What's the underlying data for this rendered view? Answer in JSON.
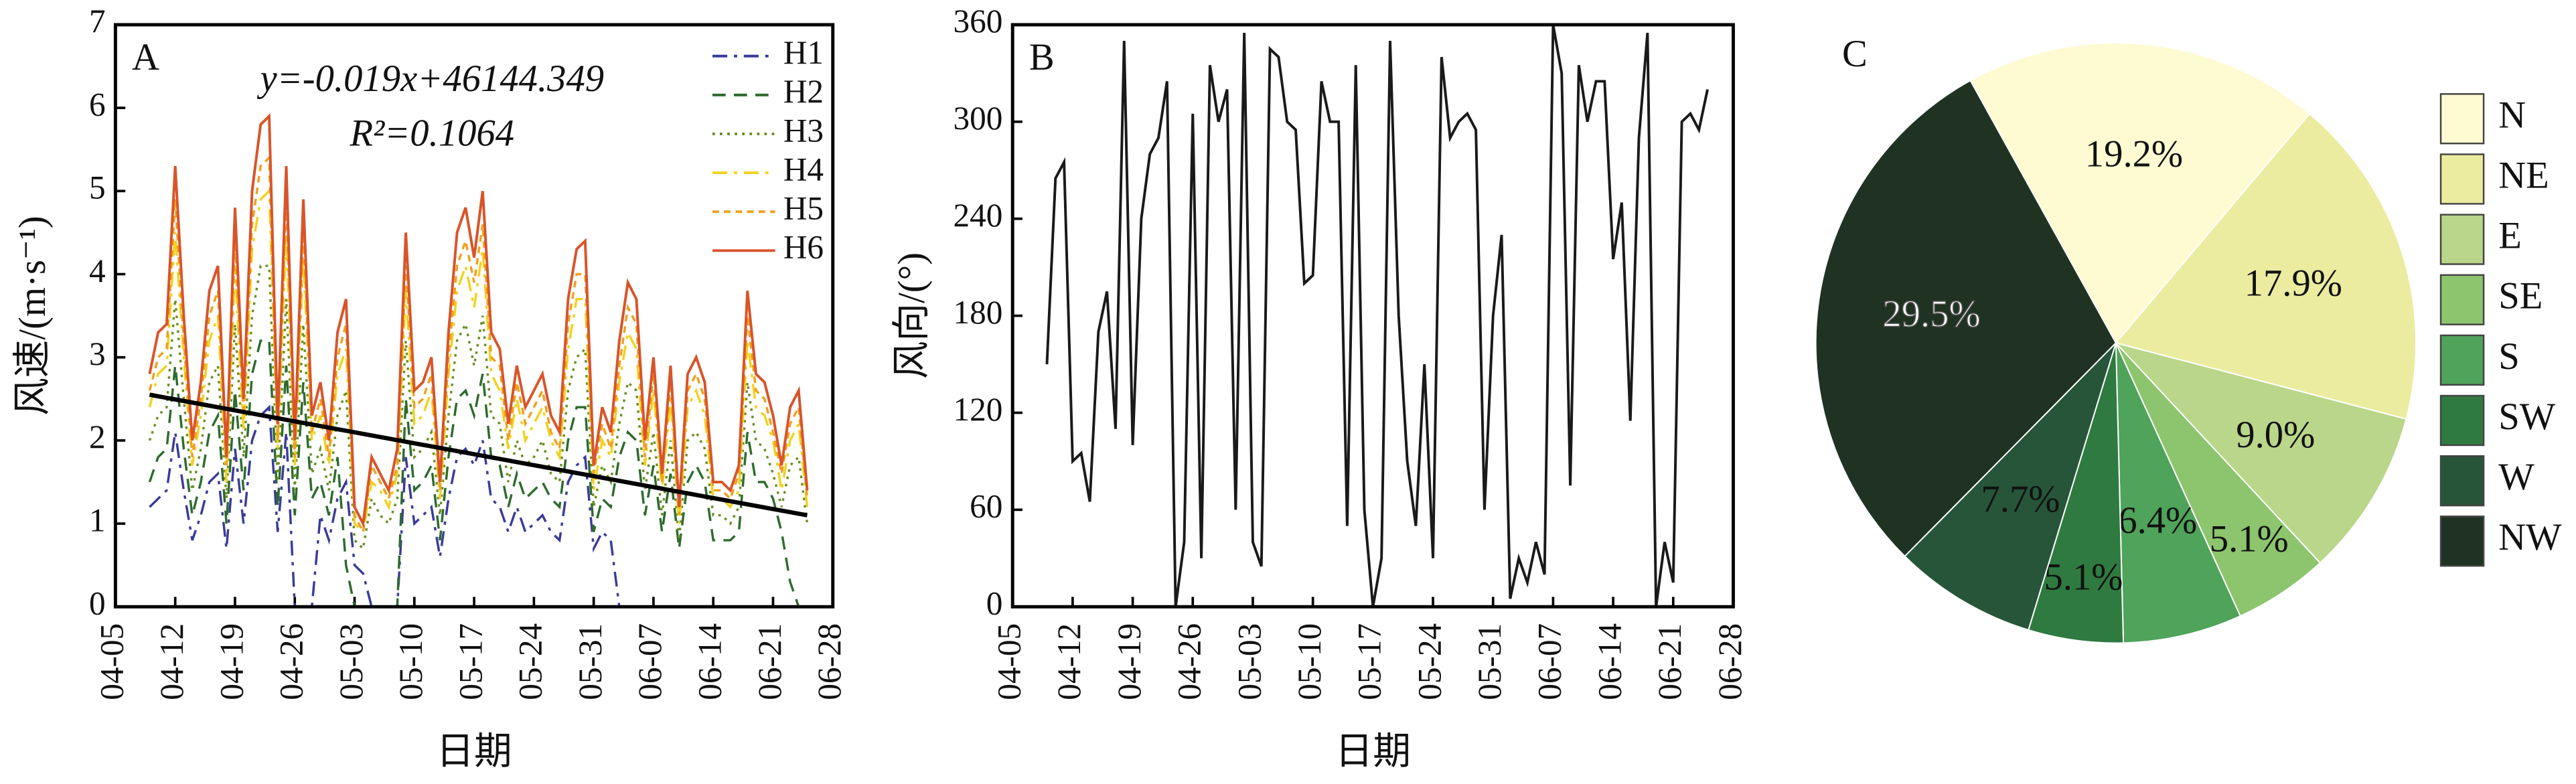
{
  "chart_data": [
    {
      "type": "line",
      "label": "A",
      "ylabel": "风速/(m·s⁻¹)",
      "xlabel": "日期",
      "equation": "y=-0.019x+46144.349",
      "r2": "R²=0.1064",
      "x": [
        "04-09",
        "04-10",
        "04-11",
        "04-12",
        "04-13",
        "04-14",
        "04-15",
        "04-16",
        "04-17",
        "04-18",
        "04-19",
        "04-20",
        "04-21",
        "04-22",
        "04-23",
        "04-24",
        "04-25",
        "04-26",
        "04-27",
        "04-28",
        "04-29",
        "04-30",
        "05-01",
        "05-02",
        "05-03",
        "05-04",
        "05-05",
        "05-06",
        "05-07",
        "05-08",
        "05-09",
        "05-10",
        "05-11",
        "05-12",
        "05-13",
        "05-14",
        "05-15",
        "05-16",
        "05-17",
        "05-18",
        "05-19",
        "05-20",
        "05-21",
        "05-22",
        "05-23",
        "05-24",
        "05-25",
        "05-26",
        "05-27",
        "05-28",
        "05-29",
        "05-30",
        "05-31",
        "06-01",
        "06-02",
        "06-03",
        "06-04",
        "06-05",
        "06-06",
        "06-07",
        "06-08",
        "06-09",
        "06-10",
        "06-11",
        "06-12",
        "06-13",
        "06-14",
        "06-15",
        "06-16",
        "06-17",
        "06-18",
        "06-19",
        "06-20",
        "06-21",
        "06-22",
        "06-23",
        "06-24",
        "06-25"
      ],
      "xlim": [
        "04-05",
        "06-28"
      ],
      "xticks": [
        "04-05",
        "04-12",
        "04-19",
        "04-26",
        "05-03",
        "05-10",
        "05-17",
        "05-24",
        "05-31",
        "06-07",
        "06-14",
        "06-21",
        "06-28"
      ],
      "ylim": [
        0,
        7
      ],
      "yticks": [
        0,
        1,
        2,
        3,
        4,
        5,
        6,
        7
      ],
      "legend": "upper right",
      "series": [
        {
          "name": "H1",
          "color": "#3b3b9a",
          "linestyle": "dashdot",
          "values": [
            1.2,
            1.3,
            1.4,
            2.1,
            1.4,
            0.8,
            1.1,
            1.5,
            1.6,
            0.7,
            1.9,
            1.0,
            2.0,
            2.3,
            2.4,
            0.9,
            2.1,
            0.0,
            0.0,
            0.0,
            1.1,
            0.8,
            1.3,
            1.5,
            0.5,
            0.4,
            0.0,
            0.0,
            0.0,
            0.0,
            1.8,
            1.0,
            1.1,
            1.2,
            0.6,
            1.3,
            1.8,
            1.9,
            1.7,
            2.0,
            1.3,
            1.2,
            0.9,
            1.2,
            0.9,
            1.0,
            1.1,
            0.9,
            0.8,
            1.5,
            1.7,
            1.8,
            0.7,
            0.9,
            0.8,
            0.0,
            0.0,
            0.0,
            0.0,
            0.0,
            0.0,
            0.0,
            0.0,
            0.0,
            0.0,
            0.0,
            0.0,
            0.0,
            0.0,
            0.0,
            0.0,
            0.0,
            0.0,
            0.0,
            0.0,
            0.0,
            0.0,
            0.0
          ]
        },
        {
          "name": "H2",
          "color": "#2e6b2e",
          "linestyle": "dashed",
          "values": [
            1.5,
            1.8,
            1.9,
            2.9,
            1.9,
            1.1,
            1.5,
            2.1,
            2.3,
            1.0,
            2.6,
            1.4,
            2.8,
            3.2,
            3.2,
            1.2,
            2.9,
            1.1,
            2.7,
            1.3,
            1.5,
            1.1,
            1.8,
            0.5,
            0.0,
            0.0,
            0.0,
            0.0,
            0.0,
            0.0,
            2.5,
            1.4,
            1.5,
            1.7,
            0.8,
            1.8,
            2.5,
            2.6,
            2.3,
            2.8,
            1.8,
            1.7,
            1.2,
            1.6,
            1.3,
            1.4,
            1.5,
            1.3,
            1.2,
            2.0,
            2.4,
            2.4,
            0.9,
            1.3,
            1.2,
            1.8,
            2.1,
            2.0,
            1.1,
            1.7,
            0.9,
            1.6,
            0.7,
            1.5,
            1.7,
            1.5,
            0.8,
            0.8,
            0.8,
            0.9,
            2.1,
            1.5,
            1.5,
            1.3,
            0.9,
            0.3,
            0.0,
            0.0
          ]
        },
        {
          "name": "H3",
          "color": "#6b8e23",
          "linestyle": "dotted",
          "values": [
            2.0,
            2.3,
            2.4,
            3.7,
            2.5,
            1.4,
            1.9,
            2.7,
            2.9,
            1.3,
            3.4,
            1.8,
            3.5,
            4.1,
            4.1,
            1.5,
            3.7,
            1.4,
            3.4,
            1.6,
            1.9,
            1.4,
            2.3,
            2.6,
            0.8,
            0.7,
            1.3,
            1.1,
            1.0,
            1.3,
            3.2,
            1.8,
            1.9,
            2.1,
            1.1,
            2.3,
            3.2,
            3.4,
            2.9,
            3.5,
            2.3,
            2.2,
            1.5,
            2.0,
            1.7,
            1.8,
            2.0,
            1.6,
            1.5,
            2.6,
            3.0,
            3.1,
            1.2,
            1.7,
            1.5,
            2.2,
            2.7,
            2.6,
            1.4,
            2.1,
            1.1,
            2.0,
            0.8,
            2.0,
            2.1,
            1.9,
            1.1,
            1.1,
            1.0,
            1.2,
            2.7,
            2.0,
            1.9,
            1.6,
            1.2,
            1.7,
            1.8,
            1.0
          ]
        },
        {
          "name": "H4",
          "color": "#f2d21e",
          "linestyle": "dashdot",
          "values": [
            2.4,
            2.8,
            2.9,
            4.5,
            3.0,
            1.7,
            2.3,
            3.2,
            3.5,
            1.5,
            4.1,
            2.1,
            4.3,
            4.9,
            5.0,
            1.9,
            4.5,
            1.7,
            4.2,
            2.0,
            2.3,
            1.7,
            2.8,
            3.1,
            1.0,
            0.9,
            1.5,
            1.4,
            1.2,
            1.6,
            3.8,
            2.2,
            2.3,
            2.6,
            1.3,
            2.8,
            3.8,
            4.1,
            3.6,
            4.3,
            2.8,
            2.6,
            1.9,
            2.5,
            2.0,
            2.2,
            2.4,
            2.0,
            1.8,
            3.1,
            3.7,
            3.7,
            1.4,
            2.0,
            1.8,
            2.7,
            3.3,
            3.1,
            1.7,
            2.6,
            1.4,
            2.5,
            1.0,
            2.4,
            2.6,
            2.3,
            1.3,
            1.3,
            1.2,
            1.4,
            3.2,
            2.4,
            2.3,
            2.0,
            1.4,
            2.0,
            2.2,
            1.2
          ]
        },
        {
          "name": "H5",
          "color": "#f0a020",
          "linestyle": "shortdash",
          "values": [
            2.6,
            3.0,
            3.1,
            4.9,
            3.2,
            1.8,
            2.5,
            3.5,
            3.8,
            1.7,
            4.4,
            2.3,
            4.6,
            5.3,
            5.4,
            2.0,
            4.9,
            1.8,
            4.5,
            2.1,
            2.5,
            1.8,
            3.0,
            3.4,
            1.1,
            0.9,
            1.7,
            1.5,
            1.3,
            1.7,
            4.1,
            2.4,
            2.5,
            2.8,
            1.4,
            3.0,
            4.1,
            4.4,
            3.9,
            4.6,
            3.0,
            2.9,
            2.0,
            2.7,
            2.2,
            2.4,
            2.6,
            2.1,
            1.9,
            3.4,
            4.0,
            4.0,
            1.6,
            2.2,
            1.9,
            2.9,
            3.6,
            3.4,
            1.8,
            2.8,
            1.5,
            2.7,
            1.1,
            2.6,
            2.8,
            2.5,
            1.4,
            1.4,
            1.3,
            1.6,
            3.5,
            2.6,
            2.5,
            2.1,
            1.6,
            2.2,
            2.4,
            1.3
          ]
        },
        {
          "name": "H6",
          "color": "#d9542a",
          "linestyle": "solid",
          "values": [
            2.8,
            3.3,
            3.4,
            5.3,
            3.5,
            2.0,
            2.7,
            3.8,
            4.1,
            1.8,
            4.8,
            2.5,
            5.0,
            5.8,
            5.9,
            2.2,
            5.3,
            2.0,
            4.9,
            2.3,
            2.7,
            2.0,
            3.3,
            3.7,
            1.2,
            1.0,
            1.8,
            1.6,
            1.4,
            1.9,
            4.5,
            2.6,
            2.7,
            3.0,
            1.5,
            3.3,
            4.5,
            4.8,
            4.2,
            5.0,
            3.3,
            3.1,
            2.2,
            2.9,
            2.4,
            2.6,
            2.8,
            2.3,
            2.1,
            3.7,
            4.3,
            4.4,
            1.7,
            2.4,
            2.1,
            3.2,
            3.9,
            3.7,
            2.0,
            3.0,
            1.6,
            2.9,
            1.2,
            2.8,
            3.0,
            2.7,
            1.5,
            1.5,
            1.4,
            1.7,
            3.8,
            2.8,
            2.7,
            2.3,
            1.7,
            2.4,
            2.6,
            1.4
          ]
        }
      ],
      "trend": {
        "color": "#000000",
        "x": [
          "04-09",
          "06-25"
        ],
        "values": [
          2.55,
          1.1
        ]
      }
    },
    {
      "type": "line",
      "label": "B",
      "ylabel": "风向/(°)",
      "xlabel": "日期",
      "x": [
        "04-09",
        "04-10",
        "04-11",
        "04-12",
        "04-13",
        "04-14",
        "04-15",
        "04-16",
        "04-17",
        "04-18",
        "04-19",
        "04-20",
        "04-21",
        "04-22",
        "04-23",
        "04-24",
        "04-25",
        "04-26",
        "04-27",
        "04-28",
        "04-29",
        "04-30",
        "05-01",
        "05-02",
        "05-03",
        "05-04",
        "05-05",
        "05-06",
        "05-07",
        "05-08",
        "05-09",
        "05-10",
        "05-11",
        "05-12",
        "05-13",
        "05-14",
        "05-15",
        "05-16",
        "05-17",
        "05-18",
        "05-19",
        "05-20",
        "05-21",
        "05-22",
        "05-23",
        "05-24",
        "05-25",
        "05-26",
        "05-27",
        "05-28",
        "05-29",
        "05-30",
        "05-31",
        "06-01",
        "06-02",
        "06-03",
        "06-04",
        "06-05",
        "06-06",
        "06-07",
        "06-08",
        "06-09",
        "06-10",
        "06-11",
        "06-12",
        "06-13",
        "06-14",
        "06-15",
        "06-16",
        "06-17",
        "06-18",
        "06-19",
        "06-20",
        "06-21",
        "06-22",
        "06-23",
        "06-24",
        "06-25"
      ],
      "xlim": [
        "04-05",
        "06-28"
      ],
      "xticks": [
        "04-05",
        "04-12",
        "04-19",
        "04-26",
        "05-03",
        "05-10",
        "05-17",
        "05-24",
        "05-31",
        "06-07",
        "06-14",
        "06-21",
        "06-28"
      ],
      "ylim": [
        0,
        360
      ],
      "yticks": [
        0,
        60,
        120,
        180,
        240,
        300,
        360
      ],
      "series": [
        {
          "color": "#1a1a1a",
          "linestyle": "solid",
          "values": [
            150,
            265,
            275,
            90,
            95,
            65,
            170,
            195,
            110,
            350,
            100,
            240,
            280,
            290,
            325,
            0,
            40,
            305,
            30,
            335,
            300,
            320,
            60,
            355,
            40,
            25,
            345,
            340,
            300,
            295,
            200,
            205,
            325,
            300,
            300,
            50,
            335,
            60,
            0,
            30,
            350,
            180,
            90,
            50,
            150,
            30,
            340,
            290,
            300,
            305,
            295,
            60,
            180,
            230,
            5,
            30,
            15,
            40,
            20,
            360,
            330,
            75,
            335,
            300,
            325,
            325,
            215,
            250,
            115,
            290,
            355,
            0,
            40,
            15,
            300,
            305,
            295,
            320
          ]
        }
      ]
    },
    {
      "type": "pie",
      "label": "C",
      "categories": [
        "N",
        "NE",
        "E",
        "SE",
        "S",
        "SW",
        "W",
        "NW"
      ],
      "values": [
        19.2,
        17.9,
        9.0,
        5.1,
        6.4,
        5.1,
        7.7,
        29.5
      ],
      "value_labels": [
        "19.2%",
        "17.9%",
        "9.0%",
        "5.1%",
        "6.4%",
        "5.1%",
        "7.7%",
        "29.5%"
      ],
      "colors": [
        "#fefad2",
        "#ebeca0",
        "#b9d68a",
        "#8dc46e",
        "#4fa35a",
        "#2f7a40",
        "#27553a",
        "#203322"
      ],
      "legend": "right"
    }
  ]
}
